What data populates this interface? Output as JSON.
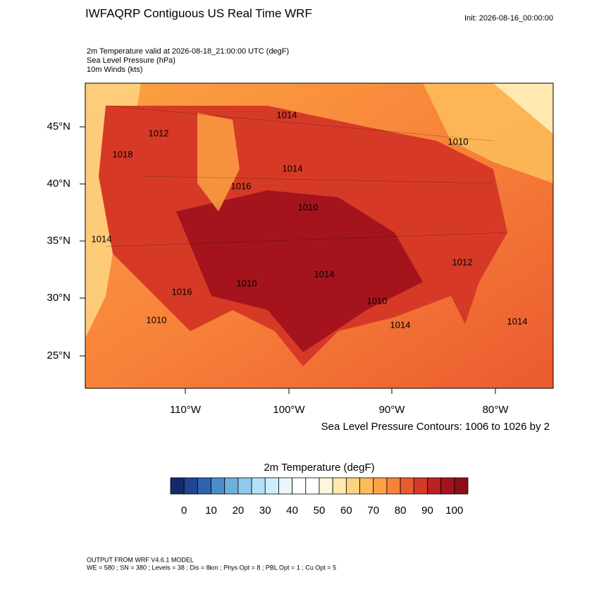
{
  "header": {
    "title": "IWFAQRP Contiguous US Real Time WRF",
    "init": "Init: 2026-08-16_00:00:00"
  },
  "fields": [
    "2m Temperature valid at 2026-08-18_21:00:00 UTC   (degF)",
    "Sea Level Pressure   (hPa)",
    "10m Winds   (kts)"
  ],
  "map": {
    "lat_labels": [
      "45°N",
      "40°N",
      "35°N",
      "30°N",
      "25°N"
    ],
    "lon_labels": [
      "110°W",
      "100°W",
      "90°W",
      "80°W"
    ],
    "contour_labels": [
      "1014",
      "1012",
      "1018",
      "1014",
      "1016",
      "1010",
      "1010",
      "1014",
      "1014",
      "1016",
      "1010",
      "1012",
      "1010",
      "1014",
      "1010",
      "1014"
    ],
    "contour_note": "Sea Level Pressure Contours: 1006 to 1026 by 2"
  },
  "colorbar": {
    "title": "2m Temperature  (degF)",
    "colors": [
      "#162a6a",
      "#1f4593",
      "#2e63b0",
      "#4b8ccb",
      "#6cb0de",
      "#8fcaee",
      "#b2e0f7",
      "#cfeefb",
      "#eaf6fc",
      "#ffffff",
      "#ffffff",
      "#fff7dc",
      "#ffe9ae",
      "#fed27f",
      "#fdbb59",
      "#fca242",
      "#f7823a",
      "#ea5a2f",
      "#d63a27",
      "#bd2021",
      "#a5141d",
      "#8a1018"
    ],
    "ticks": [
      0,
      10,
      20,
      30,
      40,
      50,
      60,
      70,
      80,
      90,
      100
    ]
  },
  "footer": [
    "OUTPUT FROM WRF V4.6.1 MODEL",
    "WE = 580 ; SN = 380 ; Levels = 38 ; Dis = 8km ; Phys Opt = 8 ; PBL Opt = 1 ; Cu Opt = 5"
  ]
}
